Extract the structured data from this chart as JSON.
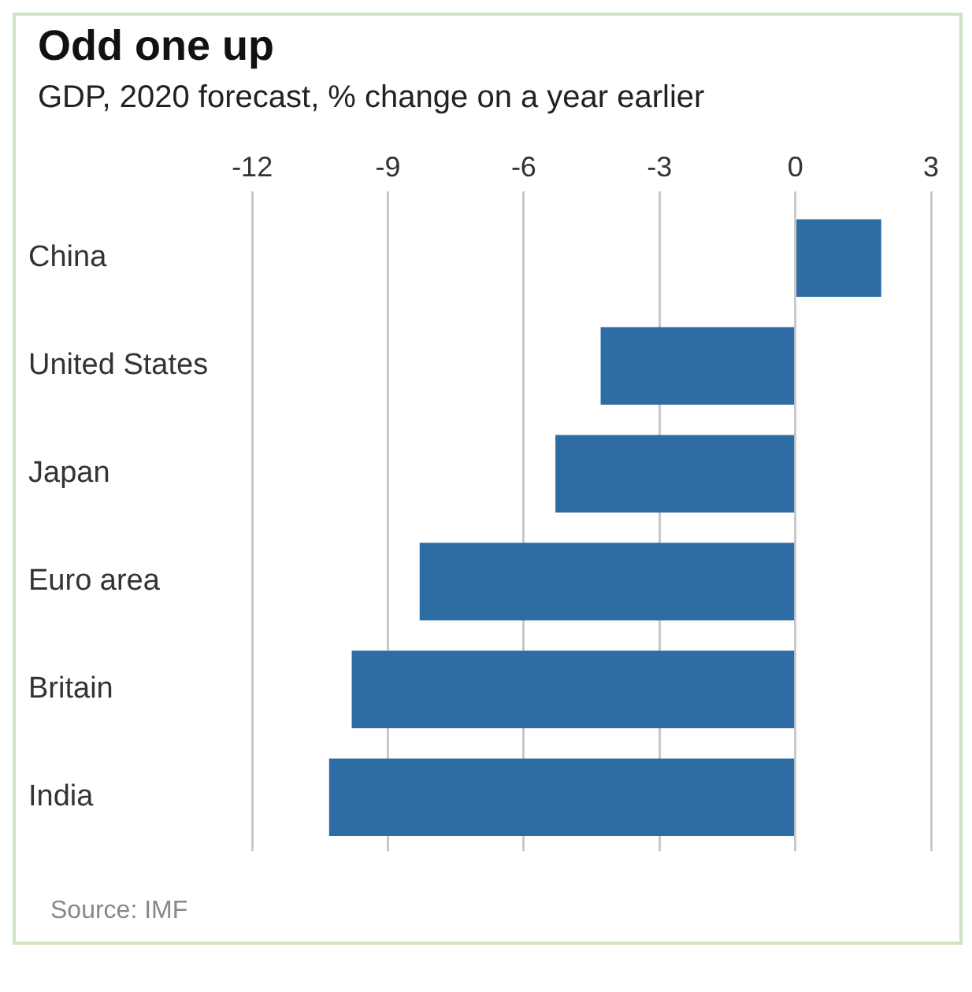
{
  "chart_data": {
    "type": "bar",
    "orientation": "horizontal",
    "title": "Odd one up",
    "subtitle": "GDP, 2020 forecast, % change on a year earlier",
    "categories": [
      "China",
      "United States",
      "Japan",
      "Euro area",
      "Britain",
      "India"
    ],
    "values": [
      1.9,
      -4.3,
      -5.3,
      -8.3,
      -9.8,
      -10.3
    ],
    "color": "#2e6da4",
    "xlim": [
      -12,
      3
    ],
    "xticks": [
      -12,
      -9,
      -6,
      -3,
      0,
      3
    ],
    "grid": "x",
    "annotations": [
      "Source: IMF"
    ]
  }
}
